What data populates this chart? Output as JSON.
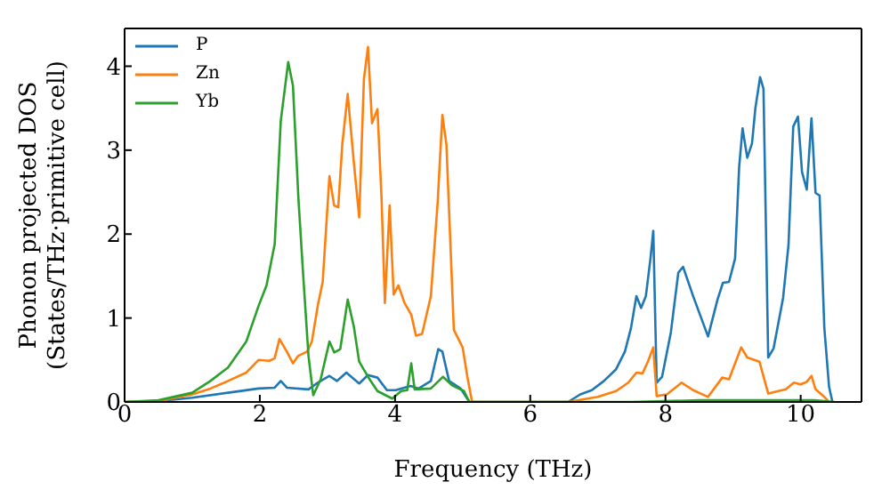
{
  "chart_data": {
    "type": "line",
    "xlabel": "Frequency (THz)",
    "ylabel": "Phonon projected DOS\n(States/THz·primitive cell)",
    "xlim": [
      0,
      10.9
    ],
    "xticks": [
      0,
      2,
      4,
      6,
      8,
      10
    ],
    "ylim": [
      0,
      4.45
    ],
    "yticks": [
      0,
      1,
      2,
      3,
      4
    ],
    "legend": "top left",
    "marker": "none",
    "line_style": "solid",
    "series": [
      {
        "name": "P",
        "color": "#1f77b4",
        "x": [
          0,
          0.5,
          1.0,
          1.53,
          1.98,
          2.22,
          2.31,
          2.4,
          2.72,
          2.84,
          3.03,
          3.14,
          3.28,
          3.47,
          3.6,
          3.74,
          3.88,
          4.01,
          4.23,
          4.35,
          4.53,
          4.64,
          4.7,
          4.8,
          4.97,
          5.1,
          6.56,
          6.74,
          6.91,
          7.09,
          7.27,
          7.4,
          7.49,
          7.57,
          7.64,
          7.71,
          7.78,
          7.82,
          7.87,
          7.95,
          8.08,
          8.19,
          8.26,
          8.41,
          8.63,
          8.77,
          8.85,
          8.94,
          9.03,
          9.09,
          9.14,
          9.21,
          9.28,
          9.33,
          9.4,
          9.45,
          9.52,
          9.6,
          9.74,
          9.82,
          9.89,
          9.96,
          10.02,
          10.09,
          10.16,
          10.22,
          10.28,
          10.35,
          10.42,
          10.47
        ],
        "values": [
          0,
          0.01,
          0.05,
          0.11,
          0.16,
          0.17,
          0.25,
          0.17,
          0.15,
          0.22,
          0.31,
          0.25,
          0.35,
          0.22,
          0.32,
          0.29,
          0.14,
          0.14,
          0.19,
          0.16,
          0.25,
          0.63,
          0.6,
          0.25,
          0.16,
          0,
          0,
          0.09,
          0.14,
          0.25,
          0.39,
          0.6,
          0.88,
          1.26,
          1.12,
          1.26,
          1.72,
          2.04,
          0.23,
          0.3,
          0.83,
          1.54,
          1.61,
          1.26,
          0.78,
          1.22,
          1.42,
          1.43,
          1.71,
          2.8,
          3.26,
          2.91,
          3.08,
          3.5,
          3.87,
          3.73,
          0.53,
          0.64,
          1.24,
          1.87,
          3.28,
          3.4,
          2.74,
          2.53,
          3.38,
          2.49,
          2.46,
          0.88,
          0.18,
          0
        ]
      },
      {
        "name": "Zn",
        "color": "#ff7f0e",
        "x": [
          0,
          0.5,
          1.0,
          1.27,
          1.53,
          1.8,
          1.98,
          2.14,
          2.22,
          2.29,
          2.4,
          2.49,
          2.57,
          2.7,
          2.77,
          2.86,
          2.93,
          3.03,
          3.1,
          3.16,
          3.22,
          3.3,
          3.39,
          3.47,
          3.54,
          3.6,
          3.66,
          3.74,
          3.8,
          3.85,
          3.92,
          3.98,
          4.05,
          4.14,
          4.24,
          4.31,
          4.4,
          4.53,
          4.63,
          4.7,
          4.76,
          4.87,
          5.0,
          5.07,
          5.14,
          6.56,
          7.0,
          7.27,
          7.45,
          7.57,
          7.66,
          7.74,
          7.82,
          7.87,
          8.02,
          8.24,
          8.41,
          8.63,
          8.84,
          8.94,
          9.12,
          9.21,
          9.39,
          9.52,
          9.78,
          9.9,
          10.0,
          10.09,
          10.16,
          10.22,
          10.35,
          10.42
        ],
        "values": [
          0,
          0.01,
          0.09,
          0.16,
          0.25,
          0.35,
          0.5,
          0.49,
          0.52,
          0.75,
          0.6,
          0.46,
          0.55,
          0.6,
          0.72,
          1.16,
          1.43,
          2.69,
          2.34,
          2.32,
          3.07,
          3.67,
          2.86,
          2.2,
          3.85,
          4.23,
          3.32,
          3.49,
          2.44,
          1.18,
          2.34,
          1.28,
          1.39,
          1.18,
          1.04,
          0.79,
          0.81,
          1.26,
          2.37,
          3.42,
          3.07,
          0.86,
          0.65,
          0.3,
          0,
          0,
          0.06,
          0.13,
          0.23,
          0.35,
          0.34,
          0.48,
          0.65,
          0.07,
          0.09,
          0.23,
          0.14,
          0.06,
          0.29,
          0.27,
          0.65,
          0.53,
          0.48,
          0.1,
          0.15,
          0.23,
          0.21,
          0.24,
          0.31,
          0.15,
          0.06,
          0
        ]
      },
      {
        "name": "Yb",
        "color": "#2ca02c",
        "x": [
          0,
          0.5,
          1.0,
          1.27,
          1.53,
          1.8,
          1.98,
          2.1,
          2.22,
          2.31,
          2.42,
          2.49,
          2.57,
          2.64,
          2.72,
          2.79,
          2.9,
          3.03,
          3.1,
          3.19,
          3.3,
          3.39,
          3.47,
          3.6,
          3.74,
          3.96,
          4.09,
          4.18,
          4.24,
          4.29,
          4.53,
          4.71,
          4.84,
          5.02,
          5.1,
          7.5,
          8.5,
          9.5,
          10.2,
          10.5
        ],
        "values": [
          0,
          0.02,
          0.11,
          0.25,
          0.41,
          0.72,
          1.14,
          1.39,
          1.88,
          3.35,
          4.05,
          3.77,
          2.44,
          1.53,
          0.55,
          0.08,
          0.27,
          0.72,
          0.59,
          0.63,
          1.22,
          0.9,
          0.48,
          0.3,
          0.13,
          0.04,
          0.13,
          0.14,
          0.46,
          0.15,
          0.16,
          0.3,
          0.2,
          0.13,
          0,
          0,
          0.02,
          0.02,
          0.02,
          0
        ]
      }
    ]
  }
}
